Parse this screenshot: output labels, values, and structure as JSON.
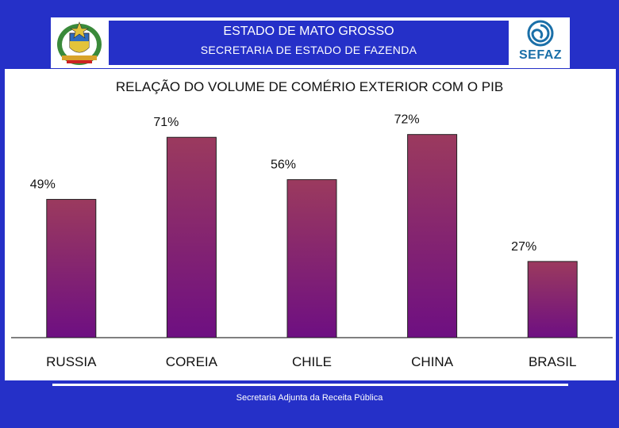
{
  "header": {
    "line1": "ESTADO DE MATO GROSSO",
    "line2": "SECRETARIA DE ESTADO DE FAZENDA",
    "logo_right": "SEFAZ"
  },
  "footer": {
    "text": "Secretaria Adjunta da Receita Pública"
  },
  "colors": {
    "background": "#2530c8",
    "bar_top": "#9b3a5e",
    "bar_bottom": "#6e0f82"
  },
  "chart_data": {
    "type": "bar",
    "title": "RELAÇÃO DO VOLUME DE COMÉRIO EXTERIOR COM O PIB",
    "categories": [
      "RUSSIA",
      "COREIA",
      "CHILE",
      "CHINA",
      "BRASIL"
    ],
    "values": [
      49,
      71,
      56,
      72,
      27
    ],
    "value_labels": [
      "49%",
      "71%",
      "56%",
      "72%",
      "27%"
    ],
    "ylim": [
      0,
      100
    ],
    "grid": false,
    "xlabel": "",
    "ylabel": ""
  }
}
